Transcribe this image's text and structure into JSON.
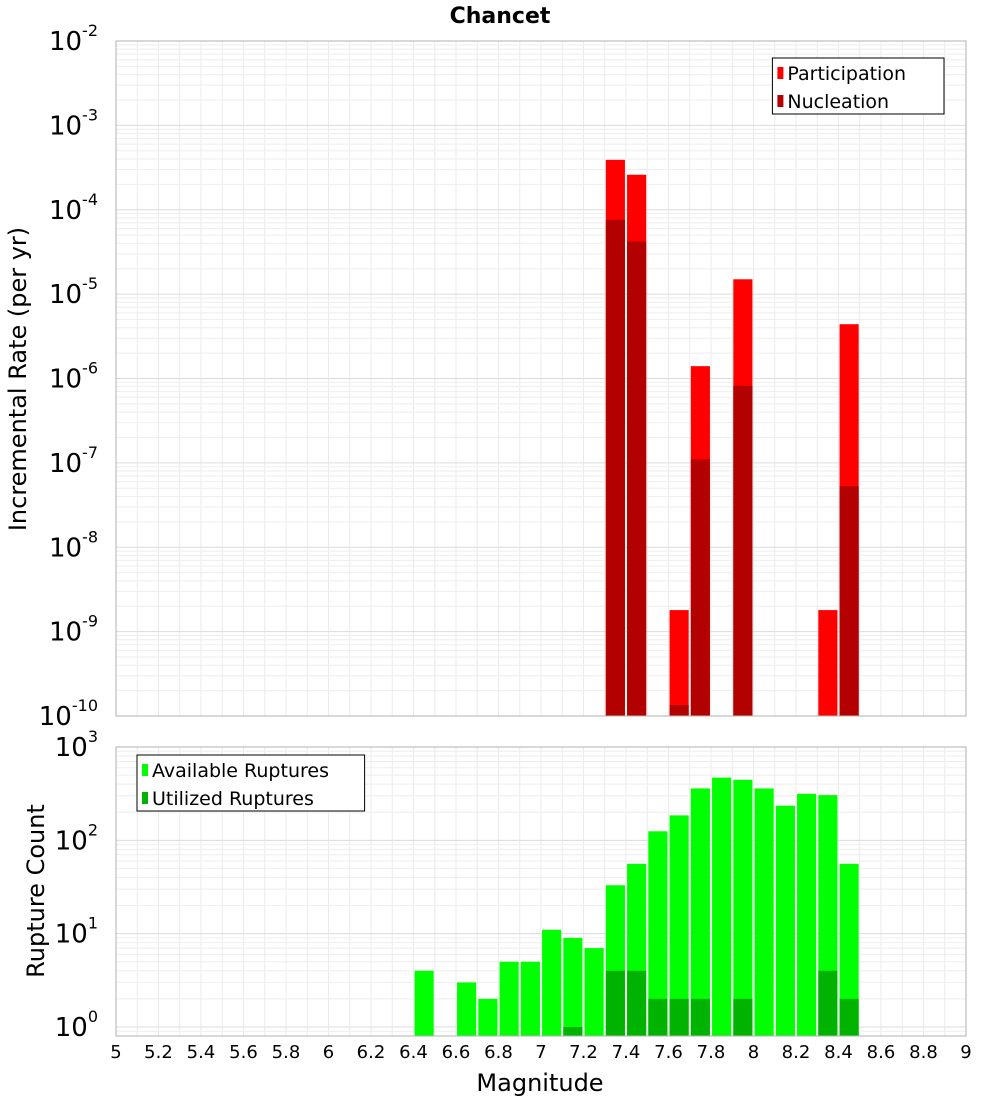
{
  "chart_data": [
    {
      "type": "bar",
      "title": "Chancet",
      "xlabel": "",
      "ylabel": "Incremental Rate (per yr)",
      "yscale": "log",
      "xlim": [
        5,
        9
      ],
      "ylim": [
        1e-10,
        0.01
      ],
      "ytick_exponents": [
        -2,
        -3,
        -4,
        -5,
        -6,
        -7,
        -8,
        -9,
        -10
      ],
      "grid": true,
      "legend_position": "top-right",
      "bar_mode": "overlay",
      "series": [
        {
          "name": "Participation",
          "color": "#ff0000",
          "points": [
            {
              "x": 7.35,
              "y": 0.00039
            },
            {
              "x": 7.45,
              "y": 0.00026
            },
            {
              "x": 7.65,
              "y": 1.8e-09
            },
            {
              "x": 7.75,
              "y": 1.4e-06
            },
            {
              "x": 7.95,
              "y": 1.5e-05
            },
            {
              "x": 8.35,
              "y": 1.8e-09
            },
            {
              "x": 8.45,
              "y": 4.4e-06
            }
          ]
        },
        {
          "name": "Nucleation",
          "color": "#b30000",
          "points": [
            {
              "x": 7.35,
              "y": 7.6e-05
            },
            {
              "x": 7.45,
              "y": 4.2e-05
            },
            {
              "x": 7.65,
              "y": 1.35e-10
            },
            {
              "x": 7.75,
              "y": 1.1e-07
            },
            {
              "x": 7.95,
              "y": 8.2e-07
            },
            {
              "x": 8.45,
              "y": 5.3e-08
            }
          ]
        }
      ]
    },
    {
      "type": "bar",
      "title": "",
      "xlabel": "Magnitude",
      "ylabel": "Rupture Count",
      "yscale": "log",
      "xlim": [
        5,
        9
      ],
      "ylim": [
        0.8,
        1000
      ],
      "ytick_exponents": [
        3,
        2,
        1,
        0
      ],
      "xticks": [
        "5",
        "5.2",
        "5.4",
        "5.6",
        "5.8",
        "6",
        "6.2",
        "6.4",
        "6.6",
        "6.8",
        "7",
        "7.2",
        "7.4",
        "7.6",
        "7.8",
        "8",
        "8.2",
        "8.4",
        "8.6",
        "8.8",
        "9"
      ],
      "grid": true,
      "legend_position": "top-left",
      "bar_mode": "overlay",
      "series": [
        {
          "name": "Available Ruptures",
          "color": "#00ff00",
          "points": [
            {
              "x": 6.45,
              "y": 4
            },
            {
              "x": 6.65,
              "y": 3
            },
            {
              "x": 6.75,
              "y": 2
            },
            {
              "x": 6.85,
              "y": 5
            },
            {
              "x": 6.95,
              "y": 5
            },
            {
              "x": 7.05,
              "y": 11
            },
            {
              "x": 7.15,
              "y": 9
            },
            {
              "x": 7.25,
              "y": 7
            },
            {
              "x": 7.35,
              "y": 33
            },
            {
              "x": 7.45,
              "y": 56
            },
            {
              "x": 7.55,
              "y": 125
            },
            {
              "x": 7.65,
              "y": 185
            },
            {
              "x": 7.75,
              "y": 360
            },
            {
              "x": 7.85,
              "y": 470
            },
            {
              "x": 7.95,
              "y": 445
            },
            {
              "x": 8.05,
              "y": 360
            },
            {
              "x": 8.15,
              "y": 235
            },
            {
              "x": 8.25,
              "y": 315
            },
            {
              "x": 8.35,
              "y": 305
            },
            {
              "x": 8.45,
              "y": 56
            }
          ]
        },
        {
          "name": "Utilized Ruptures",
          "color": "#00b300",
          "points": [
            {
              "x": 7.15,
              "y": 1
            },
            {
              "x": 7.35,
              "y": 4
            },
            {
              "x": 7.45,
              "y": 4
            },
            {
              "x": 7.55,
              "y": 2
            },
            {
              "x": 7.65,
              "y": 2
            },
            {
              "x": 7.75,
              "y": 2
            },
            {
              "x": 7.95,
              "y": 2
            },
            {
              "x": 8.35,
              "y": 4
            },
            {
              "x": 8.45,
              "y": 2
            }
          ]
        }
      ]
    }
  ]
}
